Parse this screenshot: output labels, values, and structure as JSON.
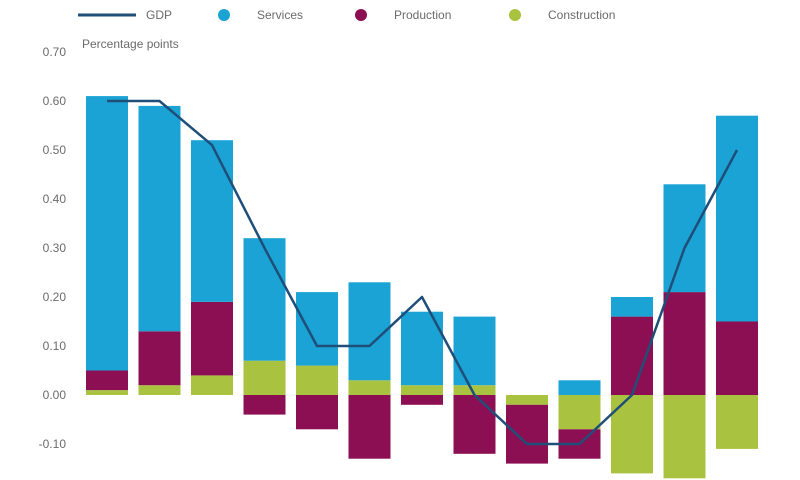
{
  "chart_data": {
    "type": "bar",
    "stacked": true,
    "ylabel": "Percentage points",
    "ylim": [
      -0.17,
      0.7
    ],
    "yticks": [
      0.7,
      0.6,
      0.5,
      0.4,
      0.3,
      0.2,
      0.1,
      0.0,
      -0.1
    ],
    "ytick_labels": [
      "0.70",
      "0.60",
      "0.50",
      "0.40",
      "0.30",
      "0.20",
      "0.10",
      "0.00",
      "-0.10"
    ],
    "grid": false,
    "legend_position": "top",
    "category_count": 13,
    "series": [
      {
        "name": "Services",
        "type": "bar",
        "color": "#1aa3d4",
        "values": [
          0.56,
          0.46,
          0.33,
          0.25,
          0.15,
          0.2,
          0.15,
          0.14,
          0.0,
          0.03,
          0.04,
          0.22,
          0.42
        ]
      },
      {
        "name": "Production",
        "type": "bar",
        "color": "#8b0f52",
        "values": [
          0.04,
          0.11,
          0.15,
          -0.04,
          -0.07,
          -0.13,
          -0.02,
          -0.12,
          -0.12,
          -0.06,
          0.16,
          0.21,
          0.15
        ]
      },
      {
        "name": "Construction",
        "type": "bar",
        "color": "#a9c23f",
        "values": [
          0.01,
          0.02,
          0.04,
          0.07,
          0.06,
          0.03,
          0.02,
          0.02,
          -0.02,
          -0.07,
          -0.16,
          -0.17,
          -0.11
        ]
      },
      {
        "name": "GDP",
        "type": "line",
        "color": "#1f4e79",
        "values": [
          0.6,
          0.6,
          0.51,
          0.3,
          0.1,
          0.1,
          0.2,
          0.0,
          -0.1,
          -0.1,
          0.0,
          0.3,
          0.5
        ]
      }
    ]
  }
}
